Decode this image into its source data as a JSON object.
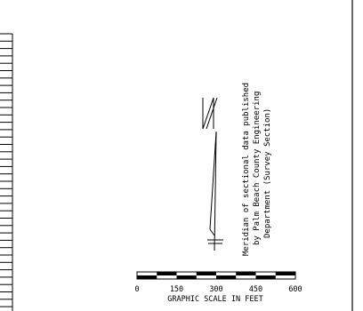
{
  "meridian_note": {
    "lines": [
      "Meridian of sectional data published",
      "by Palm Beach County Engineering",
      "Department (Survey Section)"
    ]
  },
  "north_arrow": {
    "letter": "N"
  },
  "graphic_scale": {
    "title": "GRAPHIC SCALE IN FEET",
    "ticks": [
      "0",
      "150",
      "300",
      "450",
      "600"
    ]
  }
}
